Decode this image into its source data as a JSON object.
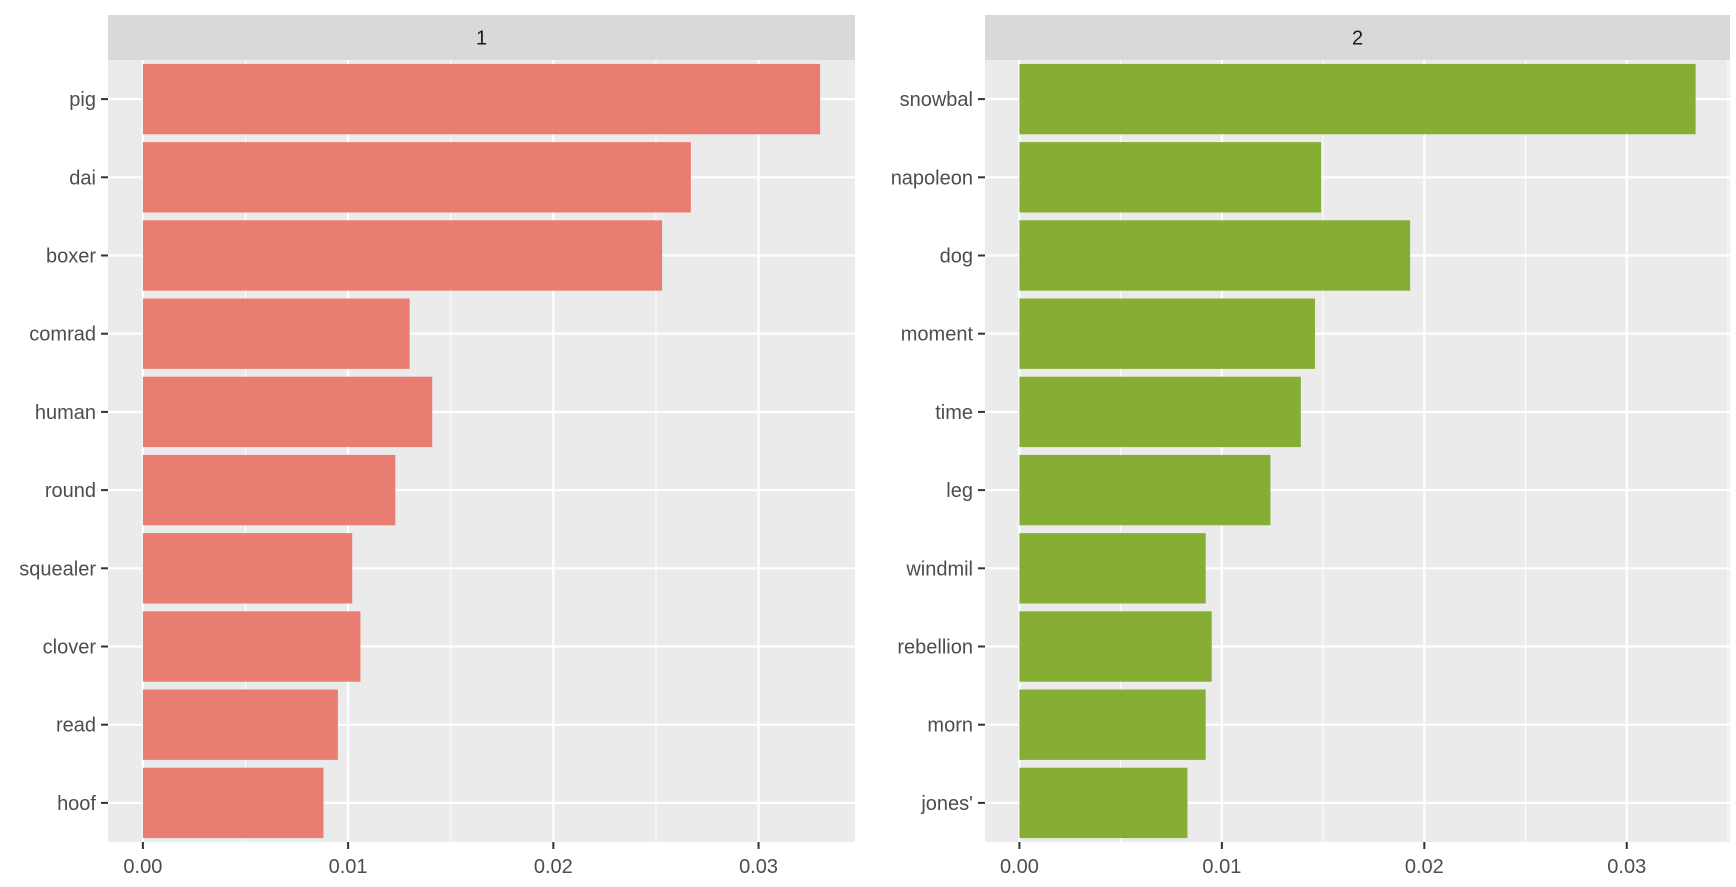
{
  "chart_data": [
    {
      "type": "bar",
      "orientation": "horizontal",
      "facet_label": "1",
      "color": "#E97D72",
      "categories": [
        "pig",
        "dai",
        "boxer",
        "comrad",
        "human",
        "round",
        "squealer",
        "clover",
        "read",
        "hoof"
      ],
      "values": [
        0.033,
        0.0267,
        0.0253,
        0.013,
        0.0141,
        0.0123,
        0.0102,
        0.0106,
        0.0095,
        0.0088
      ],
      "xlim": [
        -0.0017,
        0.0347
      ],
      "x_ticks": [
        0.0,
        0.01,
        0.02,
        0.03
      ],
      "x_tick_labels": [
        "0.00",
        "0.01",
        "0.02",
        "0.03"
      ],
      "grid": true,
      "background": "#EBEBEB",
      "strip_background": "#D9D9D9"
    },
    {
      "type": "bar",
      "orientation": "horizontal",
      "facet_label": "2",
      "color": "#86AD34",
      "categories": [
        "snowbal",
        "napoleon",
        "dog",
        "moment",
        "time",
        "leg",
        "windmil",
        "rebellion",
        "morn",
        "jones'"
      ],
      "values": [
        0.0334,
        0.0149,
        0.0193,
        0.0146,
        0.0139,
        0.0124,
        0.0092,
        0.0095,
        0.0092,
        0.0083
      ],
      "xlim": [
        -0.0017,
        0.0351
      ],
      "x_ticks": [
        0.0,
        0.01,
        0.02,
        0.03
      ],
      "x_tick_labels": [
        "0.00",
        "0.01",
        "0.02",
        "0.03"
      ],
      "grid": true,
      "background": "#EBEBEB",
      "strip_background": "#D9D9D9"
    }
  ]
}
